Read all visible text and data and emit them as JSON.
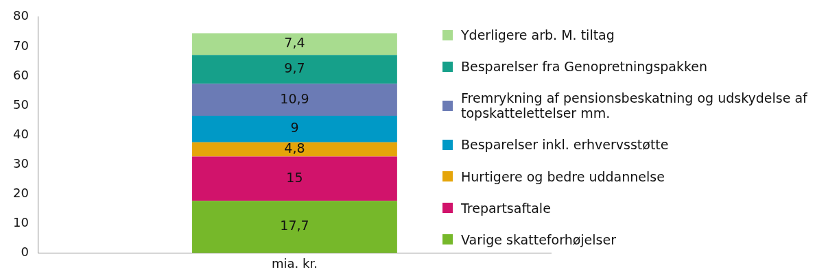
{
  "chart_data": {
    "type": "bar",
    "stacked": true,
    "categories": [
      "mia. kr."
    ],
    "series": [
      {
        "name": "Varige skatteforhøjelser",
        "color": "#76b82a",
        "values": [
          17.7
        ],
        "value_labels": [
          "17,7"
        ]
      },
      {
        "name": "Trepartsaftale",
        "color": "#d1136b",
        "values": [
          15
        ],
        "value_labels": [
          "15"
        ]
      },
      {
        "name": "Hurtigere og bedre uddannelse",
        "color": "#e5a50a",
        "values": [
          4.8
        ],
        "value_labels": [
          "4,8"
        ]
      },
      {
        "name": "Besparelser inkl. erhvervsstøtte",
        "color": "#0099c6",
        "values": [
          9
        ],
        "value_labels": [
          "9"
        ]
      },
      {
        "name": "Fremrykning af pensionsbeskatning og udskydelse af topskattelettelser mm.",
        "color": "#6b7bb5",
        "values": [
          10.9
        ],
        "value_labels": [
          "10,9"
        ]
      },
      {
        "name": "Besparelser fra Genopretningspakken",
        "color": "#16a08a",
        "values": [
          9.7
        ],
        "value_labels": [
          "9,7"
        ]
      },
      {
        "name": "Yderligere arb. M. tiltag",
        "color": "#a8dc8f",
        "values": [
          7.4
        ],
        "value_labels": [
          "7,4"
        ]
      }
    ],
    "ylim": [
      0,
      80
    ],
    "yticks": [
      0,
      10,
      20,
      30,
      40,
      50,
      60,
      70,
      80
    ],
    "grid": false,
    "legend": "right"
  }
}
